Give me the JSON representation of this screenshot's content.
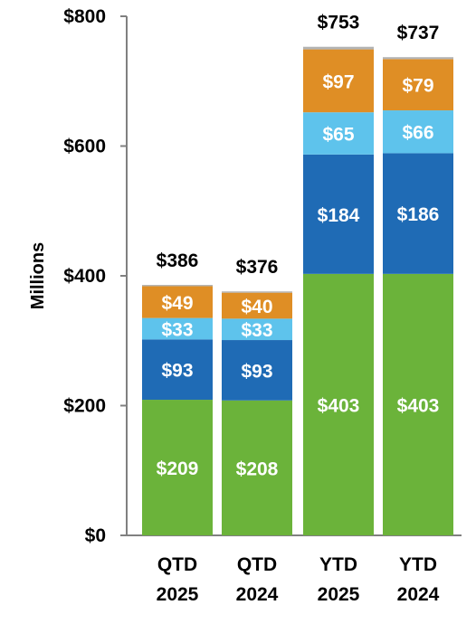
{
  "chart_data": {
    "type": "bar",
    "stacked": true,
    "categories": [
      [
        "QTD",
        "2025"
      ],
      [
        "QTD",
        "2024"
      ],
      [
        "YTD",
        "2025"
      ],
      [
        "YTD",
        "2024"
      ]
    ],
    "ylabel": "Millions",
    "ylim": [
      0,
      800
    ],
    "yticks": [
      0,
      200,
      400,
      600,
      800
    ],
    "ytick_labels": [
      "$0",
      "$200",
      "$400",
      "$600",
      "$800"
    ],
    "grid": false,
    "legend": "none",
    "series": [
      {
        "values": [
          209,
          208,
          403,
          403
        ],
        "labels": [
          "$209",
          "$208",
          "$403",
          "$403"
        ],
        "color": "#6bb33a"
      },
      {
        "values": [
          93,
          93,
          184,
          186
        ],
        "labels": [
          "$93",
          "$93",
          "$184",
          "$186"
        ],
        "color": "#1f6bb5"
      },
      {
        "values": [
          33,
          33,
          65,
          66
        ],
        "labels": [
          "$33",
          "$33",
          "$65",
          "$66"
        ],
        "color": "#5ec3ec"
      },
      {
        "values": [
          49,
          40,
          97,
          79
        ],
        "labels": [
          "$49",
          "$40",
          "$97",
          "$79"
        ],
        "color": "#df8e25"
      },
      {
        "values": [
          2,
          2,
          4,
          3
        ],
        "labels": [
          "",
          "",
          "",
          ""
        ],
        "color": "#b3b3b3"
      }
    ],
    "totals": [
      386,
      376,
      753,
      737
    ],
    "total_labels": [
      "$386",
      "$376",
      "$753",
      "$737"
    ]
  }
}
